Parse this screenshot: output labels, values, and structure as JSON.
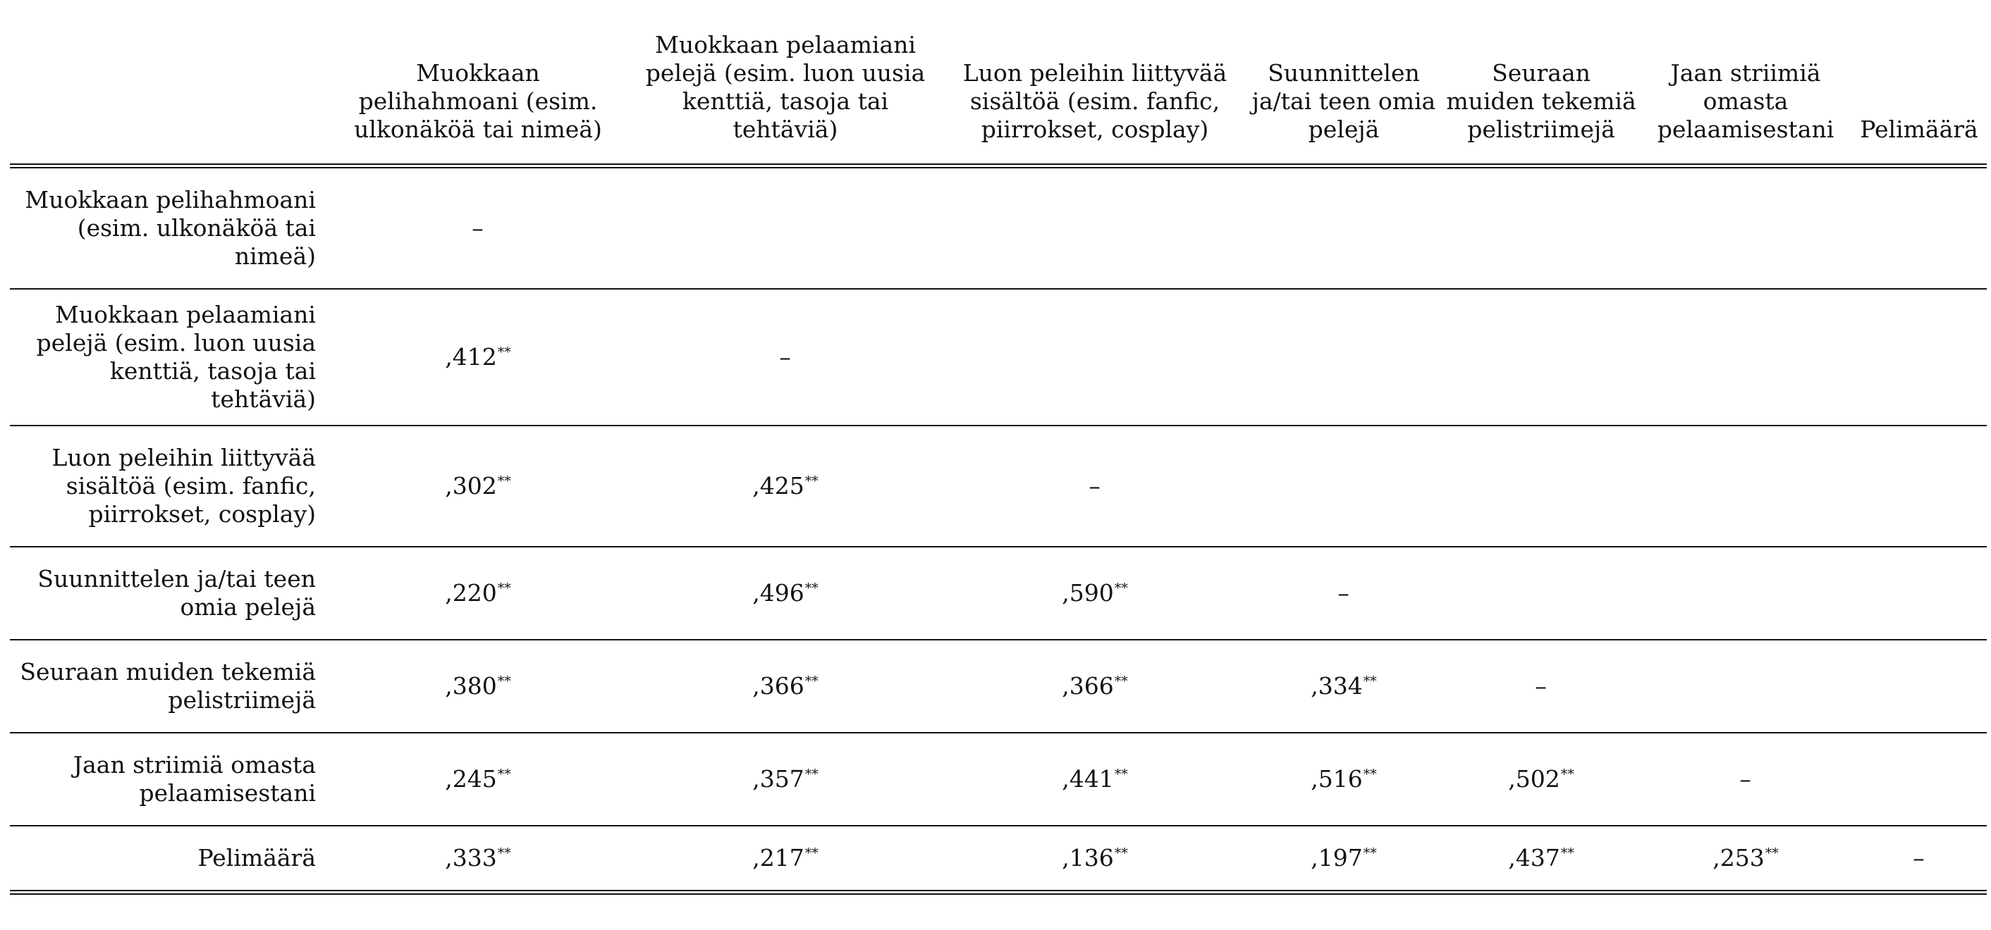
{
  "columns": [
    "Muokkaan pelihahmoani (esim. ulkonäköä tai nimeä)",
    "Muokkaan pelaamiani pelejä (esim. luon uusia kenttiä, tasoja tai tehtäviä)",
    "Luon peleihin liittyvää sisältöä (esim. fanfic, piirrokset, cosplay)",
    "Suunnittelen ja/tai teen omia pelejä",
    "Seuraan muiden tekemiä pelistriimejä",
    "Jaan striimiä omasta pelaamisestani",
    "Pelimäärä"
  ],
  "rows": [
    {
      "label": "Muokkaan pelihahmoani (esim. ulkonäköä tai nimeä)",
      "cells": [
        {
          "value": "–",
          "sig": ""
        },
        {
          "value": "",
          "sig": ""
        },
        {
          "value": "",
          "sig": ""
        },
        {
          "value": "",
          "sig": ""
        },
        {
          "value": "",
          "sig": ""
        },
        {
          "value": "",
          "sig": ""
        },
        {
          "value": "",
          "sig": ""
        }
      ]
    },
    {
      "label": "Muokkaan pelaamiani pelejä (esim. luon uusia kenttiä, tasoja tai tehtäviä)",
      "cells": [
        {
          "value": ",412",
          "sig": "**"
        },
        {
          "value": "–",
          "sig": ""
        },
        {
          "value": "",
          "sig": ""
        },
        {
          "value": "",
          "sig": ""
        },
        {
          "value": "",
          "sig": ""
        },
        {
          "value": "",
          "sig": ""
        },
        {
          "value": "",
          "sig": ""
        }
      ]
    },
    {
      "label": "Luon peleihin liittyvää sisältöä (esim. fanfic, piirrokset, cosplay)",
      "cells": [
        {
          "value": ",302",
          "sig": "**"
        },
        {
          "value": ",425",
          "sig": "**"
        },
        {
          "value": "–",
          "sig": ""
        },
        {
          "value": "",
          "sig": ""
        },
        {
          "value": "",
          "sig": ""
        },
        {
          "value": "",
          "sig": ""
        },
        {
          "value": "",
          "sig": ""
        }
      ]
    },
    {
      "label": "Suunnittelen ja/tai teen omia pelejä",
      "cells": [
        {
          "value": ",220",
          "sig": "**"
        },
        {
          "value": ",496",
          "sig": "**"
        },
        {
          "value": ",590",
          "sig": "**"
        },
        {
          "value": "–",
          "sig": ""
        },
        {
          "value": "",
          "sig": ""
        },
        {
          "value": "",
          "sig": ""
        },
        {
          "value": "",
          "sig": ""
        }
      ]
    },
    {
      "label": "Seuraan muiden tekemiä pelistriimejä",
      "cells": [
        {
          "value": ",380",
          "sig": "**"
        },
        {
          "value": ",366",
          "sig": "**"
        },
        {
          "value": ",366",
          "sig": "**"
        },
        {
          "value": ",334",
          "sig": "**"
        },
        {
          "value": "–",
          "sig": ""
        },
        {
          "value": "",
          "sig": ""
        },
        {
          "value": "",
          "sig": ""
        }
      ]
    },
    {
      "label": "Jaan striimiä omasta pelaamisestani",
      "cells": [
        {
          "value": ",245",
          "sig": "**"
        },
        {
          "value": ",357",
          "sig": "**"
        },
        {
          "value": ",441",
          "sig": "**"
        },
        {
          "value": ",516",
          "sig": "**"
        },
        {
          "value": ",502",
          "sig": "**"
        },
        {
          "value": "–",
          "sig": ""
        },
        {
          "value": "",
          "sig": ""
        }
      ]
    },
    {
      "label": "Pelimäärä",
      "cells": [
        {
          "value": ",333",
          "sig": "**"
        },
        {
          "value": ",217",
          "sig": "**"
        },
        {
          "value": ",136",
          "sig": "**"
        },
        {
          "value": ",197",
          "sig": "**"
        },
        {
          "value": ",437",
          "sig": "**"
        },
        {
          "value": ",253",
          "sig": "**"
        },
        {
          "value": "–",
          "sig": ""
        }
      ]
    }
  ]
}
